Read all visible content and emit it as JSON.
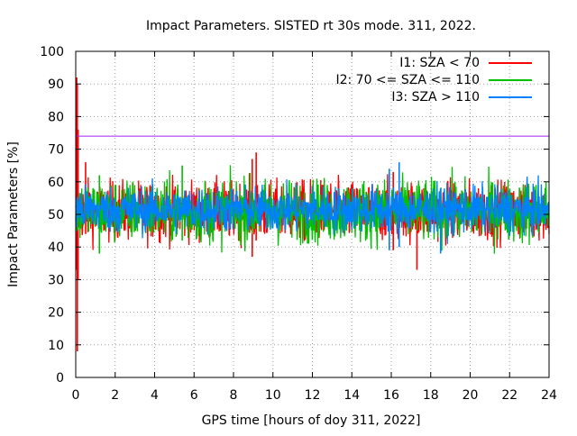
{
  "chart_data": {
    "type": "line",
    "title": "Impact Parameters. SISTED rt 30s mode. 311, 2022.",
    "xlabel": "GPS time [hours of doy 311, 2022]",
    "ylabel": "Impact Parameters [%]",
    "xlim": [
      0,
      24
    ],
    "ylim": [
      0,
      100
    ],
    "xticks": [
      0,
      2,
      4,
      6,
      8,
      10,
      12,
      14,
      16,
      18,
      20,
      22,
      24
    ],
    "yticks": [
      0,
      10,
      20,
      30,
      40,
      50,
      60,
      70,
      80,
      90,
      100
    ],
    "grid": true,
    "legend_position": "top-right",
    "threshold": {
      "value": 74,
      "color": "#a020f0"
    },
    "series": [
      {
        "name": "I1: SZA < 70",
        "color": "#ff0000",
        "center": 51,
        "noise": 4.5,
        "spikes": [
          {
            "x": 0.05,
            "low": 33,
            "high": 92
          },
          {
            "x": 0.08,
            "low": 8,
            "high": 90
          },
          {
            "x": 0.12,
            "low": 30,
            "high": 76
          },
          {
            "x": 0.5,
            "low": 44,
            "high": 66
          },
          {
            "x": 8.95,
            "low": 37,
            "high": 67
          },
          {
            "x": 9.15,
            "low": 42,
            "high": 69
          },
          {
            "x": 17.3,
            "low": 33,
            "high": 55
          },
          {
            "x": 16.1,
            "low": 39,
            "high": 63
          }
        ]
      },
      {
        "name": "I2: 70 <= SZA <= 110",
        "color": "#00c000",
        "center": 51,
        "noise": 4.8,
        "spikes": [
          {
            "x": 1.2,
            "low": 38,
            "high": 62
          },
          {
            "x": 5.4,
            "low": 42,
            "high": 65
          }
        ]
      },
      {
        "name": "I3: SZA > 110",
        "color": "#0080ff",
        "center": 51.5,
        "noise": 3.5,
        "spikes": [
          {
            "x": 15.9,
            "low": 39,
            "high": 64
          },
          {
            "x": 16.4,
            "low": 40,
            "high": 66
          },
          {
            "x": 18.5,
            "low": 38,
            "high": 58
          }
        ]
      }
    ]
  }
}
